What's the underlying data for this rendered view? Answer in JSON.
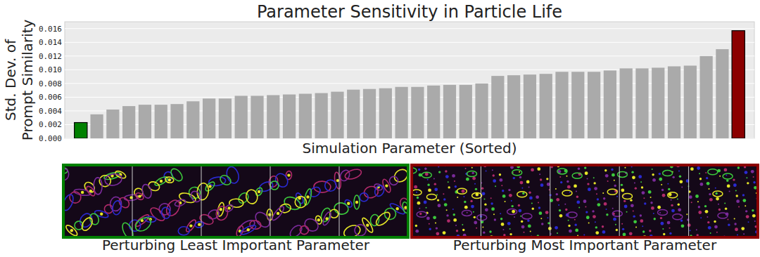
{
  "chart_data": {
    "type": "bar",
    "title": "Parameter Sensitivity in Particle Life",
    "ylabel": "Std. Dev. of\nPrompt Similarity",
    "xlabel": "Simulation Parameter (Sorted)",
    "categories": [
      null,
      null,
      null,
      null,
      null,
      null,
      null,
      null,
      null,
      null,
      null,
      null,
      null,
      null,
      null,
      null,
      null,
      null,
      null,
      null,
      null,
      null,
      null,
      null,
      null,
      null,
      null,
      null,
      null,
      null,
      null,
      null,
      null,
      null,
      null,
      null,
      null,
      null,
      null,
      null,
      null,
      null
    ],
    "values": [
      0.0023,
      0.0035,
      0.0042,
      0.0047,
      0.0049,
      0.0049,
      0.005,
      0.0054,
      0.0058,
      0.0058,
      0.0062,
      0.0062,
      0.0063,
      0.0064,
      0.0065,
      0.0066,
      0.0068,
      0.0071,
      0.0072,
      0.0073,
      0.0075,
      0.0075,
      0.0077,
      0.0078,
      0.0078,
      0.008,
      0.0091,
      0.0092,
      0.0093,
      0.0094,
      0.0097,
      0.0097,
      0.0097,
      0.0099,
      0.0102,
      0.0102,
      0.0103,
      0.0105,
      0.0106,
      0.012,
      0.013,
      0.0157
    ],
    "colors": [
      "#008000",
      "#aaaaaa",
      "#aaaaaa",
      "#aaaaaa",
      "#aaaaaa",
      "#aaaaaa",
      "#aaaaaa",
      "#aaaaaa",
      "#aaaaaa",
      "#aaaaaa",
      "#aaaaaa",
      "#aaaaaa",
      "#aaaaaa",
      "#aaaaaa",
      "#aaaaaa",
      "#aaaaaa",
      "#aaaaaa",
      "#aaaaaa",
      "#aaaaaa",
      "#aaaaaa",
      "#aaaaaa",
      "#aaaaaa",
      "#aaaaaa",
      "#aaaaaa",
      "#aaaaaa",
      "#aaaaaa",
      "#aaaaaa",
      "#aaaaaa",
      "#aaaaaa",
      "#aaaaaa",
      "#aaaaaa",
      "#aaaaaa",
      "#aaaaaa",
      "#aaaaaa",
      "#aaaaaa",
      "#aaaaaa",
      "#aaaaaa",
      "#aaaaaa",
      "#aaaaaa",
      "#aaaaaa",
      "#aaaaaa",
      "#8b0000"
    ],
    "ylim": [
      0,
      0.017
    ],
    "yticks": [
      {
        "value": 0,
        "label": "0.000"
      },
      {
        "value": 0.002,
        "label": "0.002"
      },
      {
        "value": 0.004,
        "label": "0.004"
      },
      {
        "value": 0.006,
        "label": "0.006"
      },
      {
        "value": 0.008,
        "label": "0.008"
      },
      {
        "value": 0.01,
        "label": "0.010"
      },
      {
        "value": 0.012,
        "label": "0.012"
      },
      {
        "value": 0.014,
        "label": "0.014"
      },
      {
        "value": 0.016,
        "label": "0.016"
      }
    ],
    "grid": true,
    "tick_labels": "y"
  },
  "panels": [
    {
      "caption": "Perturbing Least Important Parameter",
      "color": "#008000"
    },
    {
      "caption": "Perturbing Most Important Parameter",
      "color": "#8b0000"
    }
  ]
}
